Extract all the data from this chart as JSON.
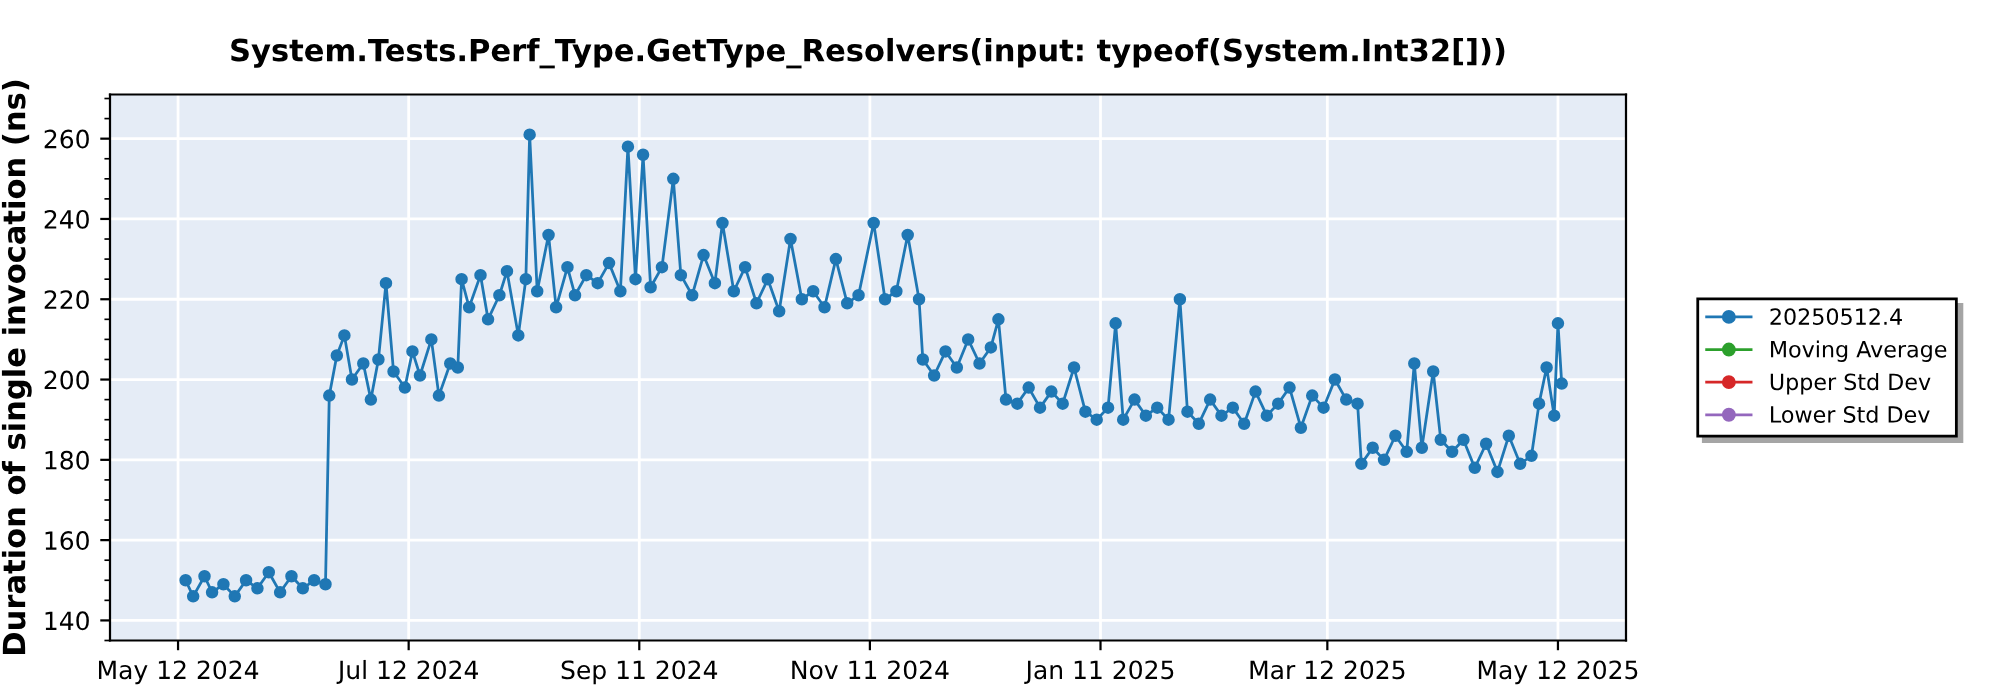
{
  "chart_data": {
    "type": "line",
    "title": "System.Tests.Perf_Type.GetType_Resolvers(input: typeof(System.Int32[]))",
    "ylabel": "Duration of single invocation (ns)",
    "xlim": [
      "2024-04-24",
      "2025-05-30"
    ],
    "xticks": [
      {
        "value": "2024-05-12",
        "label": "May 12 2024"
      },
      {
        "value": "2024-07-12",
        "label": "Jul 12 2024"
      },
      {
        "value": "2024-09-11",
        "label": "Sep 11 2024"
      },
      {
        "value": "2024-11-11",
        "label": "Nov 11 2024"
      },
      {
        "value": "2025-01-11",
        "label": "Jan 11 2025"
      },
      {
        "value": "2025-03-12",
        "label": "Mar 12 2025"
      },
      {
        "value": "2025-05-12",
        "label": "May 12 2025"
      }
    ],
    "ylim": [
      135,
      271
    ],
    "yticks": [
      140,
      160,
      180,
      200,
      220,
      240,
      260
    ],
    "grid": true,
    "legend": "right",
    "marker": "circle",
    "line_style": "solid",
    "series": [
      {
        "name": "20250512.4",
        "color": "#1f77b4",
        "x": [
          "2024-05-14",
          "2024-05-16",
          "2024-05-19",
          "2024-05-21",
          "2024-05-24",
          "2024-05-27",
          "2024-05-30",
          "2024-06-02",
          "2024-06-05",
          "2024-06-08",
          "2024-06-11",
          "2024-06-14",
          "2024-06-17",
          "2024-06-20",
          "2024-06-21",
          "2024-06-23",
          "2024-06-25",
          "2024-06-27",
          "2024-06-30",
          "2024-07-02",
          "2024-07-04",
          "2024-07-06",
          "2024-07-08",
          "2024-07-11",
          "2024-07-13",
          "2024-07-15",
          "2024-07-18",
          "2024-07-20",
          "2024-07-23",
          "2024-07-25",
          "2024-07-26",
          "2024-07-28",
          "2024-07-31",
          "2024-08-02",
          "2024-08-05",
          "2024-08-07",
          "2024-08-10",
          "2024-08-12",
          "2024-08-13",
          "2024-08-15",
          "2024-08-18",
          "2024-08-20",
          "2024-08-23",
          "2024-08-25",
          "2024-08-28",
          "2024-08-31",
          "2024-09-03",
          "2024-09-06",
          "2024-09-08",
          "2024-09-10",
          "2024-09-12",
          "2024-09-14",
          "2024-09-17",
          "2024-09-20",
          "2024-09-22",
          "2024-09-25",
          "2024-09-28",
          "2024-10-01",
          "2024-10-03",
          "2024-10-06",
          "2024-10-09",
          "2024-10-12",
          "2024-10-15",
          "2024-10-18",
          "2024-10-21",
          "2024-10-24",
          "2024-10-27",
          "2024-10-30",
          "2024-11-02",
          "2024-11-05",
          "2024-11-08",
          "2024-11-12",
          "2024-11-15",
          "2024-11-18",
          "2024-11-21",
          "2024-11-24",
          "2024-11-25",
          "2024-11-28",
          "2024-12-01",
          "2024-12-04",
          "2024-12-07",
          "2024-12-10",
          "2024-12-13",
          "2024-12-15",
          "2024-12-17",
          "2024-12-20",
          "2024-12-23",
          "2024-12-26",
          "2024-12-29",
          "2025-01-01",
          "2025-01-04",
          "2025-01-07",
          "2025-01-10",
          "2025-01-13",
          "2025-01-15",
          "2025-01-17",
          "2025-01-20",
          "2025-01-23",
          "2025-01-26",
          "2025-01-29",
          "2025-02-01",
          "2025-02-03",
          "2025-02-06",
          "2025-02-09",
          "2025-02-12",
          "2025-02-15",
          "2025-02-18",
          "2025-02-21",
          "2025-02-24",
          "2025-02-27",
          "2025-03-02",
          "2025-03-05",
          "2025-03-08",
          "2025-03-11",
          "2025-03-14",
          "2025-03-17",
          "2025-03-20",
          "2025-03-21",
          "2025-03-24",
          "2025-03-27",
          "2025-03-30",
          "2025-04-02",
          "2025-04-04",
          "2025-04-06",
          "2025-04-09",
          "2025-04-11",
          "2025-04-14",
          "2025-04-17",
          "2025-04-20",
          "2025-04-23",
          "2025-04-26",
          "2025-04-29",
          "2025-05-02",
          "2025-05-05",
          "2025-05-07",
          "2025-05-09",
          "2025-05-11",
          "2025-05-12",
          "2025-05-13"
        ],
        "values": [
          150,
          146,
          151,
          147,
          149,
          146,
          150,
          148,
          152,
          147,
          151,
          148,
          150,
          149,
          196,
          206,
          211,
          200,
          204,
          195,
          205,
          224,
          202,
          198,
          207,
          201,
          210,
          196,
          204,
          203,
          225,
          218,
          226,
          215,
          221,
          227,
          211,
          225,
          261,
          222,
          236,
          218,
          228,
          221,
          226,
          224,
          229,
          222,
          258,
          225,
          256,
          223,
          228,
          250,
          226,
          221,
          231,
          224,
          239,
          222,
          228,
          219,
          225,
          217,
          235,
          220,
          222,
          218,
          230,
          219,
          221,
          239,
          220,
          222,
          236,
          220,
          205,
          201,
          207,
          203,
          210,
          204,
          208,
          215,
          195,
          194,
          198,
          193,
          197,
          194,
          203,
          192,
          190,
          193,
          214,
          190,
          195,
          191,
          193,
          190,
          220,
          192,
          189,
          195,
          191,
          193,
          189,
          197,
          191,
          194,
          198,
          188,
          196,
          193,
          200,
          195,
          194,
          179,
          183,
          180,
          186,
          182,
          204,
          183,
          202,
          185,
          182,
          185,
          178,
          184,
          177,
          186,
          179,
          181,
          194,
          203,
          191,
          214,
          199
        ]
      },
      {
        "name": "Moving Average",
        "color": "#2ca02c"
      },
      {
        "name": "Upper Std Dev",
        "color": "#d62728"
      },
      {
        "name": "Lower Std Dev",
        "color": "#9467bd"
      }
    ]
  }
}
